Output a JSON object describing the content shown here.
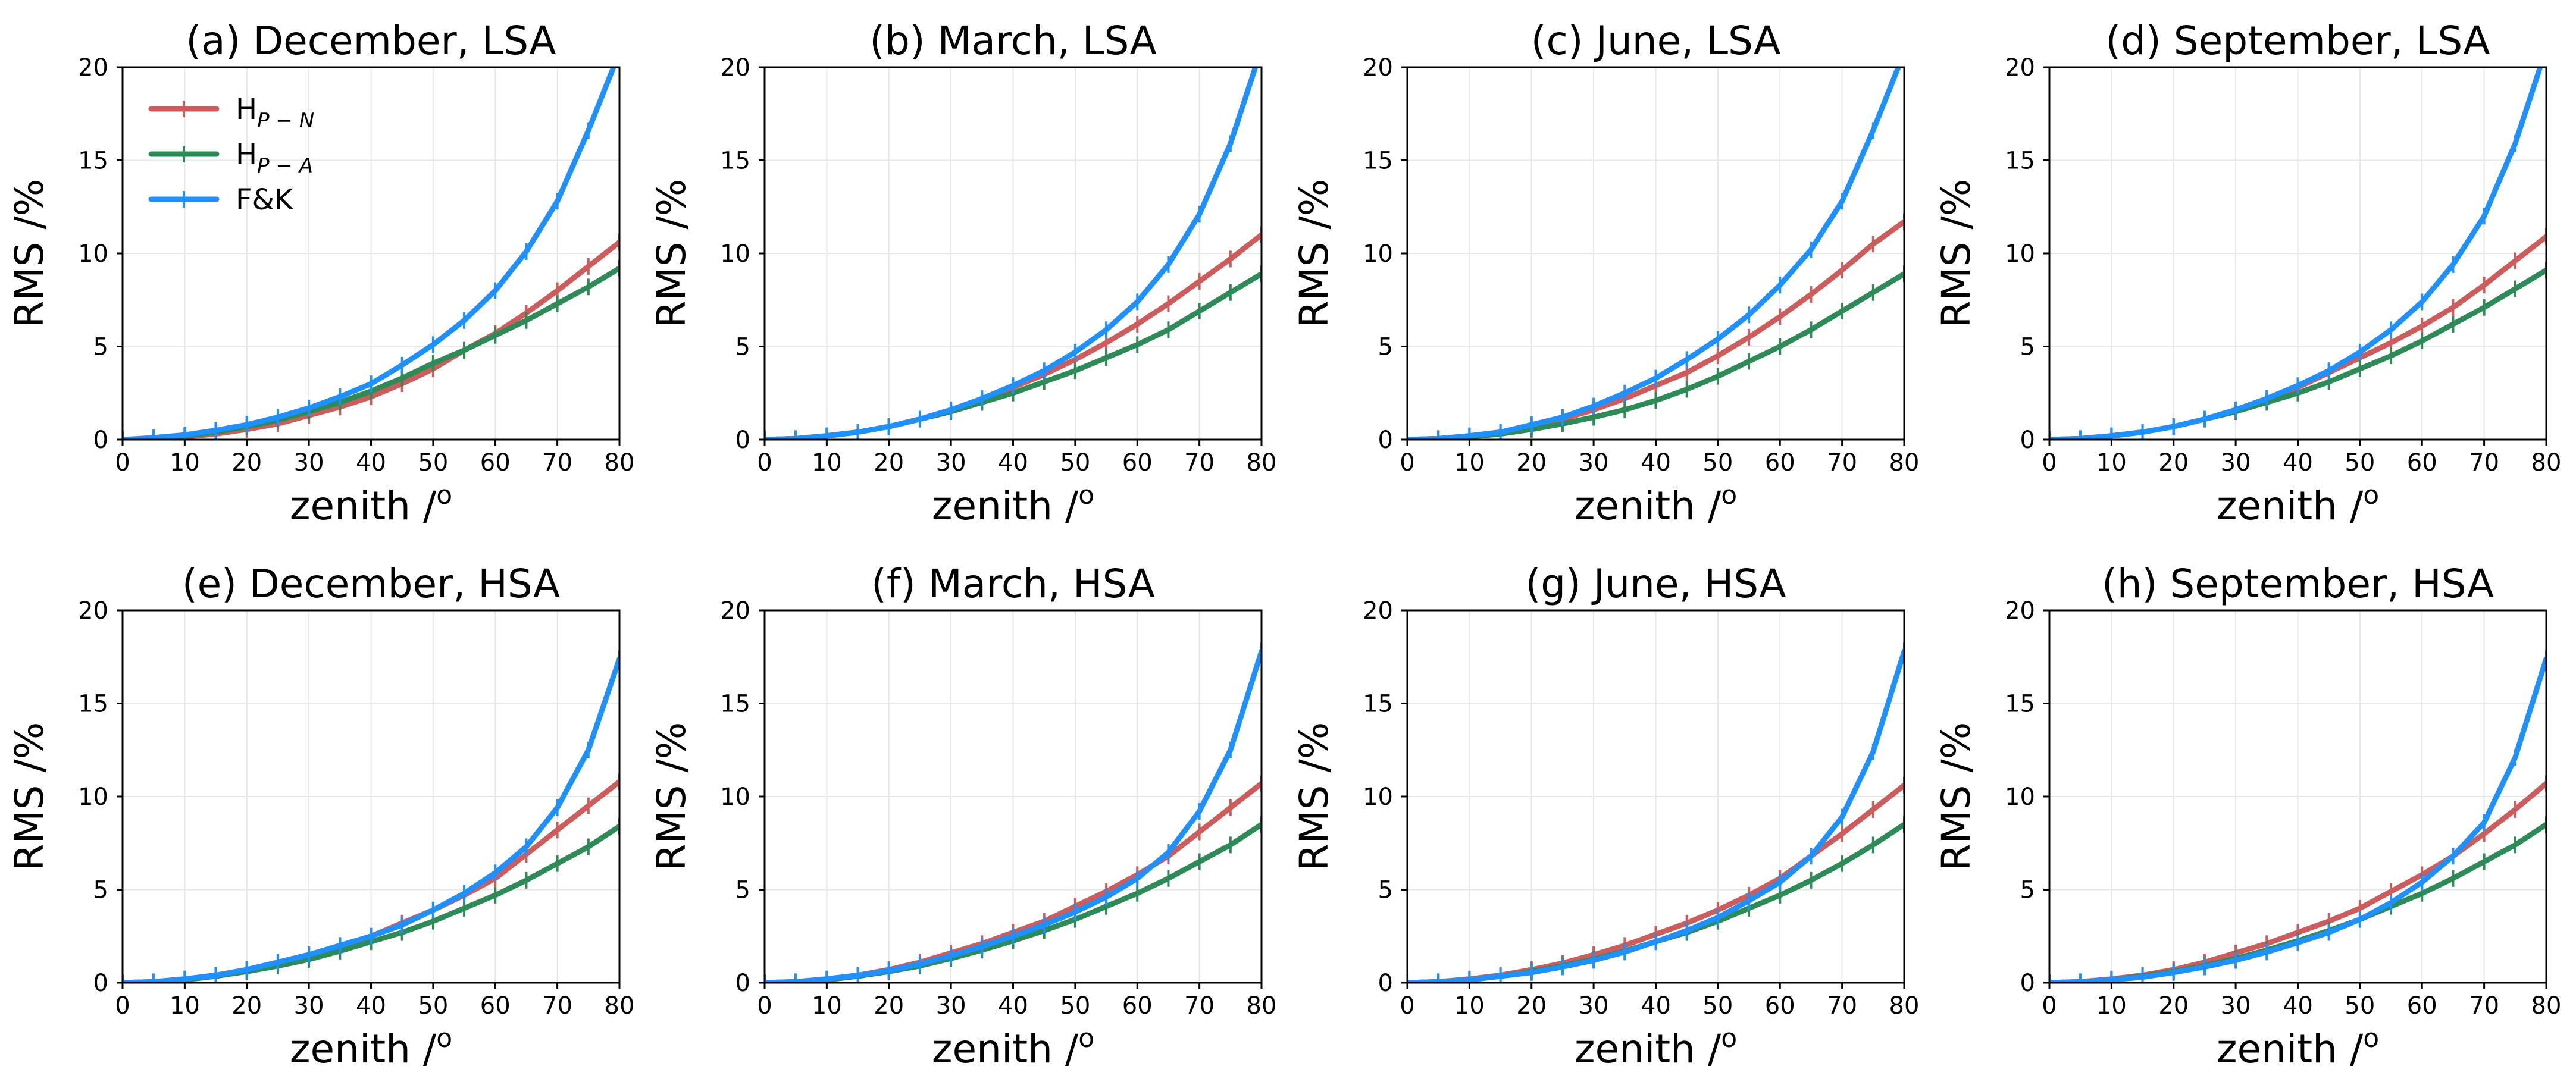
{
  "figure": {
    "legend_placement": "upper-left of panel (a)",
    "grid": true
  },
  "series_style": [
    {
      "key": "hpn",
      "color": "#cd5c5c",
      "label_base": "H",
      "label_sub": "P − N"
    },
    {
      "key": "hpa",
      "color": "#2e8b57",
      "label_base": "H",
      "label_sub": "P − A"
    },
    {
      "key": "fk",
      "color": "#1e90ff",
      "label_base": "F&K",
      "label_sub": ""
    }
  ],
  "chart_data": [
    {
      "type": "line",
      "title": "(a) December, LSA",
      "xlabel": "zenith /",
      "xlabel_sup": "o",
      "ylabel": "RMS /%",
      "xlim": [
        0,
        80
      ],
      "ylim": [
        0,
        20
      ],
      "xticks": [
        0,
        10,
        20,
        30,
        40,
        50,
        60,
        70,
        80
      ],
      "yticks": [
        0,
        5,
        10,
        15,
        20
      ],
      "x": [
        0,
        5,
        10,
        15,
        20,
        25,
        30,
        35,
        40,
        45,
        50,
        55,
        60,
        65,
        70,
        75,
        80
      ],
      "series": [
        {
          "key": "hpn",
          "values": [
            0,
            0.05,
            0.15,
            0.3,
            0.55,
            0.85,
            1.3,
            1.75,
            2.3,
            3.0,
            3.8,
            4.8,
            5.7,
            6.8,
            8.0,
            9.3,
            10.6
          ]
        },
        {
          "key": "hpa",
          "values": [
            0,
            0.05,
            0.2,
            0.4,
            0.7,
            1.05,
            1.5,
            2.0,
            2.6,
            3.3,
            4.1,
            4.8,
            5.6,
            6.4,
            7.3,
            8.2,
            9.2
          ]
        },
        {
          "key": "fk",
          "values": [
            0,
            0.1,
            0.25,
            0.5,
            0.8,
            1.2,
            1.7,
            2.3,
            3.0,
            4.0,
            5.1,
            6.4,
            8.0,
            10.1,
            12.8,
            16.6,
            20.8
          ]
        }
      ]
    },
    {
      "type": "line",
      "title": "(b) March, LSA",
      "xlabel": "zenith /",
      "xlabel_sup": "o",
      "ylabel": "RMS /%",
      "xlim": [
        0,
        80
      ],
      "ylim": [
        0,
        20
      ],
      "xticks": [
        0,
        10,
        20,
        30,
        40,
        50,
        60,
        70,
        80
      ],
      "yticks": [
        0,
        5,
        10,
        15,
        20
      ],
      "x": [
        0,
        5,
        10,
        15,
        20,
        25,
        30,
        35,
        40,
        45,
        50,
        55,
        60,
        65,
        70,
        75,
        80
      ],
      "series": [
        {
          "key": "hpn",
          "values": [
            0,
            0.05,
            0.2,
            0.4,
            0.7,
            1.1,
            1.6,
            2.1,
            2.8,
            3.5,
            4.3,
            5.2,
            6.2,
            7.3,
            8.5,
            9.7,
            11.0
          ]
        },
        {
          "key": "hpa",
          "values": [
            0,
            0.05,
            0.2,
            0.4,
            0.7,
            1.1,
            1.5,
            2.0,
            2.5,
            3.1,
            3.7,
            4.4,
            5.1,
            5.9,
            6.9,
            7.9,
            8.9
          ]
        },
        {
          "key": "fk",
          "values": [
            0,
            0.05,
            0.2,
            0.4,
            0.7,
            1.1,
            1.6,
            2.2,
            2.9,
            3.7,
            4.7,
            5.9,
            7.4,
            9.4,
            12.1,
            15.9,
            21.0
          ]
        }
      ]
    },
    {
      "type": "line",
      "title": "(c) June, LSA",
      "xlabel": "zenith /",
      "xlabel_sup": "o",
      "ylabel": "RMS /%",
      "xlim": [
        0,
        80
      ],
      "ylim": [
        0,
        20
      ],
      "xticks": [
        0,
        10,
        20,
        30,
        40,
        50,
        60,
        70,
        80
      ],
      "yticks": [
        0,
        5,
        10,
        15,
        20
      ],
      "x": [
        0,
        5,
        10,
        15,
        20,
        25,
        30,
        35,
        40,
        45,
        50,
        55,
        60,
        65,
        70,
        75,
        80
      ],
      "series": [
        {
          "key": "hpn",
          "values": [
            0,
            0.05,
            0.2,
            0.4,
            0.7,
            1.1,
            1.6,
            2.2,
            2.9,
            3.6,
            4.5,
            5.5,
            6.6,
            7.8,
            9.1,
            10.5,
            11.7
          ]
        },
        {
          "key": "hpa",
          "values": [
            0,
            0.05,
            0.15,
            0.3,
            0.55,
            0.85,
            1.2,
            1.6,
            2.1,
            2.7,
            3.4,
            4.2,
            5.0,
            5.9,
            6.9,
            7.9,
            8.9
          ]
        },
        {
          "key": "fk",
          "values": [
            0,
            0.05,
            0.2,
            0.4,
            0.8,
            1.2,
            1.8,
            2.5,
            3.3,
            4.3,
            5.4,
            6.7,
            8.3,
            10.2,
            12.8,
            16.6,
            20.8
          ]
        }
      ]
    },
    {
      "type": "line",
      "title": "(d) September, LSA",
      "xlabel": "zenith /",
      "xlabel_sup": "o",
      "ylabel": "RMS /%",
      "xlim": [
        0,
        80
      ],
      "ylim": [
        0,
        20
      ],
      "xticks": [
        0,
        10,
        20,
        30,
        40,
        50,
        60,
        70,
        80
      ],
      "yticks": [
        0,
        5,
        10,
        15,
        20
      ],
      "x": [
        0,
        5,
        10,
        15,
        20,
        25,
        30,
        35,
        40,
        45,
        50,
        55,
        60,
        65,
        70,
        75,
        80
      ],
      "series": [
        {
          "key": "hpn",
          "values": [
            0,
            0.05,
            0.2,
            0.4,
            0.7,
            1.1,
            1.6,
            2.2,
            2.8,
            3.6,
            4.4,
            5.2,
            6.1,
            7.1,
            8.3,
            9.6,
            10.9
          ]
        },
        {
          "key": "hpa",
          "values": [
            0,
            0.05,
            0.2,
            0.4,
            0.7,
            1.1,
            1.5,
            2.0,
            2.5,
            3.1,
            3.8,
            4.5,
            5.3,
            6.2,
            7.1,
            8.1,
            9.1
          ]
        },
        {
          "key": "fk",
          "values": [
            0,
            0.05,
            0.2,
            0.4,
            0.7,
            1.1,
            1.6,
            2.2,
            2.9,
            3.7,
            4.7,
            5.9,
            7.4,
            9.4,
            12.0,
            15.9,
            21.0
          ]
        }
      ]
    },
    {
      "type": "line",
      "title": "(e) December, HSA",
      "xlabel": "zenith /",
      "xlabel_sup": "o",
      "ylabel": "RMS /%",
      "xlim": [
        0,
        80
      ],
      "ylim": [
        0,
        20
      ],
      "xticks": [
        0,
        10,
        20,
        30,
        40,
        50,
        60,
        70,
        80
      ],
      "yticks": [
        0,
        5,
        10,
        15,
        20
      ],
      "x": [
        0,
        5,
        10,
        15,
        20,
        25,
        30,
        35,
        40,
        45,
        50,
        55,
        60,
        65,
        70,
        75,
        80
      ],
      "series": [
        {
          "key": "hpn",
          "values": [
            0,
            0.05,
            0.2,
            0.4,
            0.7,
            1.1,
            1.5,
            2.0,
            2.5,
            3.2,
            3.9,
            4.7,
            5.6,
            6.9,
            8.2,
            9.5,
            10.8
          ]
        },
        {
          "key": "hpa",
          "values": [
            0,
            0.05,
            0.15,
            0.35,
            0.6,
            0.9,
            1.25,
            1.7,
            2.2,
            2.7,
            3.3,
            4.0,
            4.7,
            5.5,
            6.4,
            7.3,
            8.4
          ]
        },
        {
          "key": "fk",
          "values": [
            0,
            0.05,
            0.2,
            0.4,
            0.7,
            1.1,
            1.5,
            2.0,
            2.5,
            3.1,
            3.9,
            4.8,
            5.9,
            7.3,
            9.4,
            12.5,
            17.4
          ]
        }
      ]
    },
    {
      "type": "line",
      "title": "(f) March, HSA",
      "xlabel": "zenith /",
      "xlabel_sup": "o",
      "ylabel": "RMS /%",
      "xlim": [
        0,
        80
      ],
      "ylim": [
        0,
        20
      ],
      "xticks": [
        0,
        10,
        20,
        30,
        40,
        50,
        60,
        70,
        80
      ],
      "yticks": [
        0,
        5,
        10,
        15,
        20
      ],
      "x": [
        0,
        5,
        10,
        15,
        20,
        25,
        30,
        35,
        40,
        45,
        50,
        55,
        60,
        65,
        70,
        75,
        80
      ],
      "series": [
        {
          "key": "hpn",
          "values": [
            0,
            0.05,
            0.2,
            0.4,
            0.7,
            1.1,
            1.6,
            2.1,
            2.7,
            3.3,
            4.1,
            4.9,
            5.8,
            6.8,
            8.1,
            9.4,
            10.7
          ]
        },
        {
          "key": "hpa",
          "values": [
            0,
            0.05,
            0.15,
            0.35,
            0.6,
            0.9,
            1.3,
            1.75,
            2.25,
            2.8,
            3.4,
            4.1,
            4.8,
            5.6,
            6.5,
            7.4,
            8.5
          ]
        },
        {
          "key": "fk",
          "values": [
            0,
            0.05,
            0.2,
            0.4,
            0.65,
            1.0,
            1.45,
            1.95,
            2.5,
            3.1,
            3.8,
            4.6,
            5.6,
            7.0,
            9.2,
            12.5,
            17.8
          ]
        }
      ]
    },
    {
      "type": "line",
      "title": "(g) June, HSA",
      "xlabel": "zenith /",
      "xlabel_sup": "o",
      "ylabel": "RMS /%",
      "xlim": [
        0,
        80
      ],
      "ylim": [
        0,
        20
      ],
      "xticks": [
        0,
        10,
        20,
        30,
        40,
        50,
        60,
        70,
        80
      ],
      "yticks": [
        0,
        5,
        10,
        15,
        20
      ],
      "x": [
        0,
        5,
        10,
        15,
        20,
        25,
        30,
        35,
        40,
        45,
        50,
        55,
        60,
        65,
        70,
        75,
        80
      ],
      "series": [
        {
          "key": "hpn",
          "values": [
            0,
            0.05,
            0.2,
            0.4,
            0.7,
            1.05,
            1.5,
            2.0,
            2.6,
            3.2,
            3.9,
            4.7,
            5.6,
            6.8,
            8.0,
            9.3,
            10.6
          ]
        },
        {
          "key": "hpa",
          "values": [
            0,
            0.05,
            0.15,
            0.35,
            0.6,
            0.9,
            1.25,
            1.7,
            2.2,
            2.7,
            3.3,
            4.0,
            4.7,
            5.5,
            6.4,
            7.4,
            8.5
          ]
        },
        {
          "key": "fk",
          "values": [
            0,
            0.05,
            0.15,
            0.35,
            0.55,
            0.85,
            1.2,
            1.65,
            2.2,
            2.8,
            3.5,
            4.4,
            5.4,
            6.8,
            8.9,
            12.4,
            17.8
          ]
        }
      ]
    },
    {
      "type": "line",
      "title": "(h) September, HSA",
      "xlabel": "zenith /",
      "xlabel_sup": "o",
      "ylabel": "RMS /%",
      "xlim": [
        0,
        80
      ],
      "ylim": [
        0,
        20
      ],
      "xticks": [
        0,
        10,
        20,
        30,
        40,
        50,
        60,
        70,
        80
      ],
      "yticks": [
        0,
        5,
        10,
        15,
        20
      ],
      "x": [
        0,
        5,
        10,
        15,
        20,
        25,
        30,
        35,
        40,
        45,
        50,
        55,
        60,
        65,
        70,
        75,
        80
      ],
      "series": [
        {
          "key": "hpn",
          "values": [
            0,
            0.05,
            0.2,
            0.4,
            0.7,
            1.1,
            1.6,
            2.1,
            2.7,
            3.3,
            4.0,
            4.9,
            5.8,
            6.8,
            8.0,
            9.3,
            10.7
          ]
        },
        {
          "key": "hpa",
          "values": [
            0,
            0.05,
            0.15,
            0.35,
            0.6,
            0.9,
            1.3,
            1.75,
            2.25,
            2.8,
            3.4,
            4.1,
            4.8,
            5.6,
            6.5,
            7.4,
            8.5
          ]
        },
        {
          "key": "fk",
          "values": [
            0,
            0.05,
            0.15,
            0.3,
            0.55,
            0.85,
            1.2,
            1.65,
            2.15,
            2.7,
            3.4,
            4.3,
            5.4,
            6.8,
            8.6,
            12.1,
            17.4
          ]
        }
      ]
    }
  ]
}
